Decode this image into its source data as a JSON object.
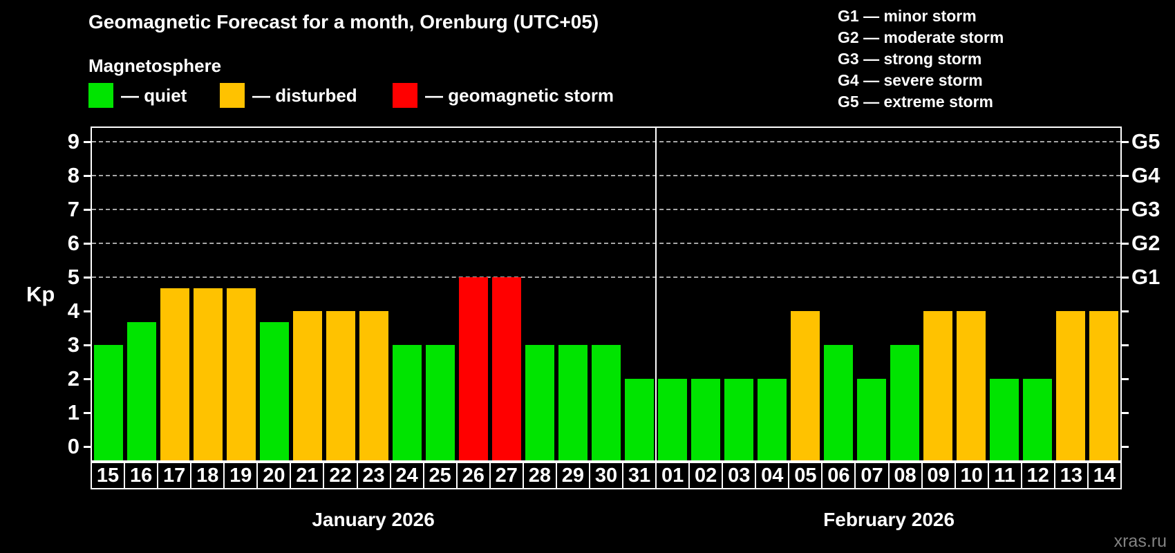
{
  "title": "Geomagnetic Forecast for a month, Orenburg (UTC+05)",
  "magnetosphere": {
    "title": "Magnetosphere",
    "items": [
      {
        "key": "quiet",
        "label": "— quiet",
        "color": "#00e400"
      },
      {
        "key": "disturbed",
        "label": "— disturbed",
        "color": "#ffc200"
      },
      {
        "key": "storm",
        "label": "— geomagnetic storm",
        "color": "#ff0000"
      }
    ]
  },
  "g_scale_legend": {
    "items": [
      "G1 — minor storm",
      "G2 — moderate storm",
      "G3 — strong storm",
      "G4 — severe storm",
      "G5 — extreme storm"
    ]
  },
  "watermark": "xras.ru",
  "chart_data": {
    "type": "bar",
    "ylabel": "Kp",
    "ylim": [
      0,
      9
    ],
    "yticks": [
      0,
      1,
      2,
      3,
      4,
      5,
      6,
      7,
      8,
      9
    ],
    "gridlines_at": [
      5,
      6,
      7,
      8,
      9
    ],
    "grid_style": "dashed",
    "legend_position": "top",
    "right_axis_labels": [
      {
        "level": 5,
        "label": "G1"
      },
      {
        "level": 6,
        "label": "G2"
      },
      {
        "level": 7,
        "label": "G3"
      },
      {
        "level": 8,
        "label": "G4"
      },
      {
        "level": 9,
        "label": "G5"
      }
    ],
    "months": [
      {
        "label": "January 2026",
        "days_count": 17
      },
      {
        "label": "February 2026",
        "days_count": 14
      }
    ],
    "status_colors": {
      "quiet": "#00e400",
      "disturbed": "#ffc200",
      "storm": "#ff0000"
    },
    "bars": [
      {
        "day": "15",
        "kp": 3,
        "status": "quiet"
      },
      {
        "day": "16",
        "kp": 3.67,
        "status": "quiet"
      },
      {
        "day": "17",
        "kp": 4.67,
        "status": "disturbed"
      },
      {
        "day": "18",
        "kp": 4.67,
        "status": "disturbed"
      },
      {
        "day": "19",
        "kp": 4.67,
        "status": "disturbed"
      },
      {
        "day": "20",
        "kp": 3.67,
        "status": "quiet"
      },
      {
        "day": "21",
        "kp": 4,
        "status": "disturbed"
      },
      {
        "day": "22",
        "kp": 4,
        "status": "disturbed"
      },
      {
        "day": "23",
        "kp": 4,
        "status": "disturbed"
      },
      {
        "day": "24",
        "kp": 3,
        "status": "quiet"
      },
      {
        "day": "25",
        "kp": 3,
        "status": "quiet"
      },
      {
        "day": "26",
        "kp": 5,
        "status": "storm"
      },
      {
        "day": "27",
        "kp": 5,
        "status": "storm"
      },
      {
        "day": "28",
        "kp": 3,
        "status": "quiet"
      },
      {
        "day": "29",
        "kp": 3,
        "status": "quiet"
      },
      {
        "day": "30",
        "kp": 3,
        "status": "quiet"
      },
      {
        "day": "31",
        "kp": 2,
        "status": "quiet"
      },
      {
        "day": "01",
        "kp": 2,
        "status": "quiet"
      },
      {
        "day": "02",
        "kp": 2,
        "status": "quiet"
      },
      {
        "day": "03",
        "kp": 2,
        "status": "quiet"
      },
      {
        "day": "04",
        "kp": 2,
        "status": "quiet"
      },
      {
        "day": "05",
        "kp": 4,
        "status": "disturbed"
      },
      {
        "day": "06",
        "kp": 3,
        "status": "quiet"
      },
      {
        "day": "07",
        "kp": 2,
        "status": "quiet"
      },
      {
        "day": "08",
        "kp": 3,
        "status": "quiet"
      },
      {
        "day": "09",
        "kp": 4,
        "status": "disturbed"
      },
      {
        "day": "10",
        "kp": 4,
        "status": "disturbed"
      },
      {
        "day": "11",
        "kp": 2,
        "status": "quiet"
      },
      {
        "day": "12",
        "kp": 2,
        "status": "quiet"
      },
      {
        "day": "13",
        "kp": 4,
        "status": "disturbed"
      },
      {
        "day": "14",
        "kp": 4,
        "status": "disturbed"
      }
    ]
  }
}
